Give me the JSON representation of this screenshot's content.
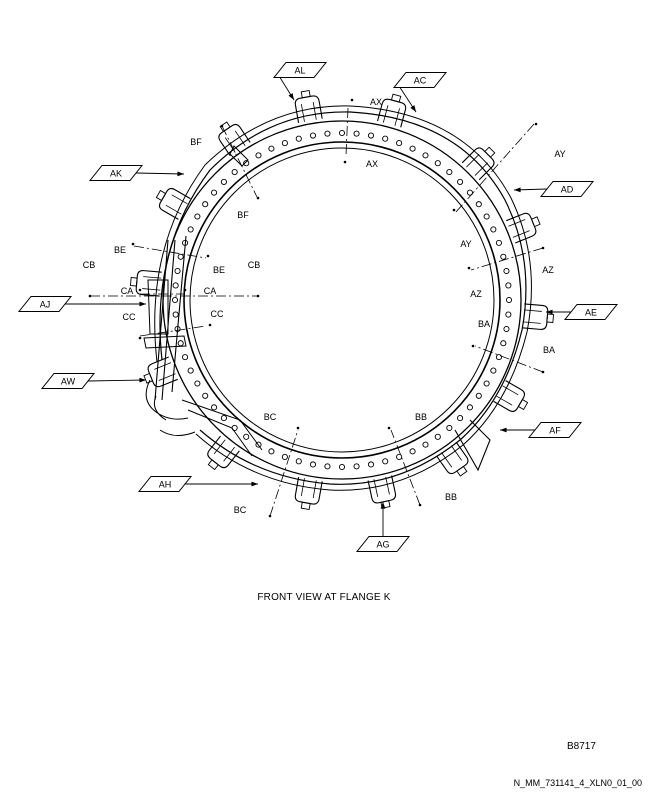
{
  "drawing": {
    "caption": "FRONT VIEW AT FLANGE K",
    "figure_number": "B8717",
    "document_code": "N_MM_731141_4_XLN0_01_00",
    "callouts": [
      "AL",
      "AC",
      "AK",
      "AD",
      "AJ",
      "AE",
      "AW",
      "AF",
      "AH",
      "AG"
    ],
    "section_labels": {
      "ax": "AX",
      "ay": "AY",
      "az": "AZ",
      "ba": "BA",
      "bb": "BB",
      "bc": "BC",
      "bf": "BF",
      "be": "BE",
      "cb": "CB",
      "ca": "CA",
      "cc": "CC"
    }
  }
}
